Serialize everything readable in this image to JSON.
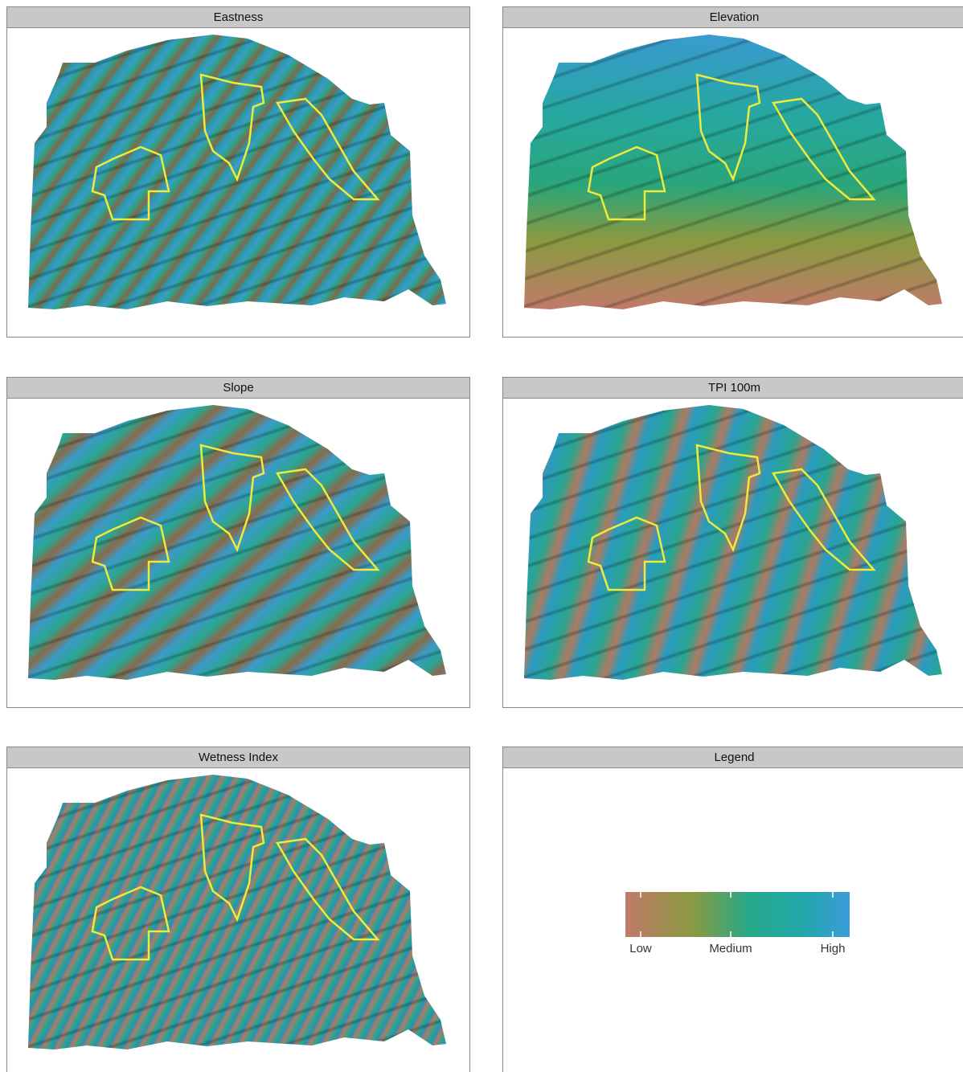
{
  "panels": [
    {
      "title": "Eastness"
    },
    {
      "title": "Elevation"
    },
    {
      "title": "Slope"
    },
    {
      "title": "TPI 100m"
    },
    {
      "title": "Wetness Index"
    }
  ],
  "legend": {
    "title": "Legend",
    "labels": [
      "Low",
      "Medium",
      "High"
    ]
  }
}
